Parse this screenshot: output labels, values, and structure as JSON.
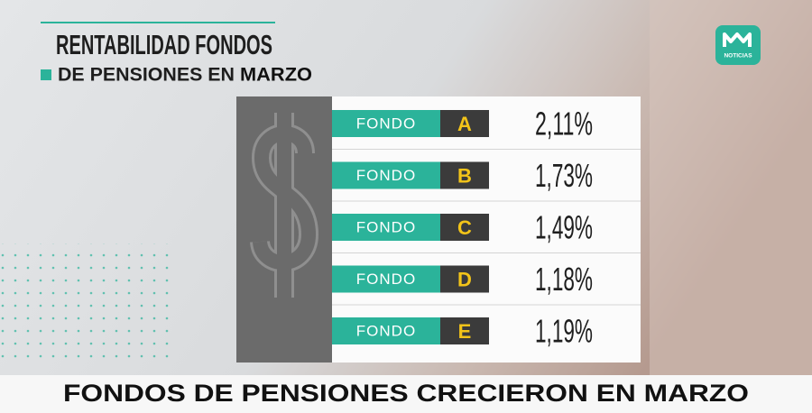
{
  "header": {
    "title_line1": "RENTABILIDAD FONDOS",
    "title_line2": "DE PENSIONES EN",
    "title_line2_bold": "MARZO"
  },
  "logo": {
    "label": "NOTICIAS"
  },
  "table": {
    "rows": [
      [
        "FONDO",
        "A",
        "2,11%"
      ],
      [
        "FONDO",
        "B",
        "1,73%"
      ],
      [
        "FONDO",
        "C",
        "1,49%"
      ],
      [
        "FONDO",
        "D",
        "1,18%"
      ],
      [
        "FONDO",
        "E",
        "1,19%"
      ]
    ]
  },
  "footer": {
    "headline": "FONDOS DE PENSIONES CRECIERON EN MARZO"
  }
}
